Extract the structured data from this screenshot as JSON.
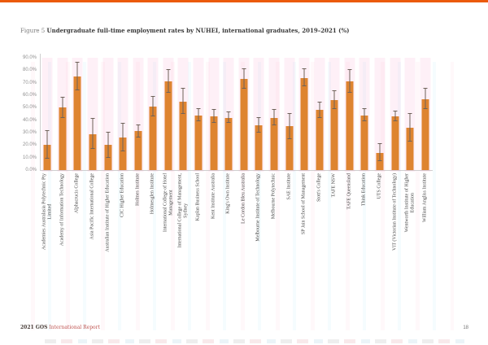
{
  "page": {
    "title_prefix": "Figure 5",
    "title_main": "Undergraduate full-time employment rates by NUHEI, international graduates, 2019–2021 (%)",
    "footer_left_bold": "2021 GOS",
    "footer_left_rest": "International Report",
    "page_number": "18"
  },
  "colors": {
    "top_accent": "#EB5A0C",
    "bar": "#DE8430",
    "error_bar": "#6E625A",
    "axis": "#CFCFCF",
    "tick_label": "#8F8F8F",
    "category_label": "#4A4A4A",
    "footer_report_red": "#BF5450"
  },
  "chart_data": {
    "type": "bar",
    "title": "Undergraduate full-time employment rates by NUHEI, international graduates, 2019–2021 (%)",
    "xlabel": "",
    "ylabel": "",
    "ylim": [
      0,
      90
    ],
    "ytick_step": 10,
    "yticks": [
      "90.0%",
      "80.0%",
      "70.0%",
      "60.0%",
      "50.0%",
      "40.0%",
      "30.0%",
      "20.0%",
      "10.0%",
      "0.0%"
    ],
    "grid": false,
    "legend": "none",
    "error_bars": true,
    "categories": [
      "Academies Australasia Polytechnic Pty\nLimited",
      "Academy of Information Technology",
      "Alphacrucis College",
      "Asia Pacific International College",
      "Australian Institute of Higher Education",
      "CIC Higher Education",
      "Holmes Institute",
      "Holmesglen Institute",
      "International College of Hotel\nManagement",
      "International College of Management,\nSydney",
      "Kaplan Business School",
      "Kent Institute Australia",
      "King's Own Institute",
      "Le Cordon Bleu Australia",
      "Melbourne Institute of Technology",
      "Melbourne Polytechnic",
      "SAE Institute",
      "SP Jain School of Management",
      "Stott's College",
      "TAFE NSW",
      "TAFE Queensland",
      "Think Education",
      "UTS College",
      "VIT (Victorian Institute of Technology)",
      "Wentworth Institute of Higher\nEducation",
      "William Angliss Institute"
    ],
    "values": [
      20,
      50,
      75,
      29,
      20,
      26,
      31,
      51,
      71,
      55,
      44,
      43,
      42,
      73,
      36,
      42,
      35,
      74,
      48,
      56,
      71,
      44,
      14,
      43,
      34,
      57
    ],
    "errors": [
      11,
      8,
      11,
      12,
      10,
      11,
      5,
      8,
      9,
      10,
      5,
      5,
      4,
      8,
      6,
      6,
      10,
      7,
      6,
      7,
      9,
      5,
      7,
      4,
      11,
      8
    ]
  }
}
